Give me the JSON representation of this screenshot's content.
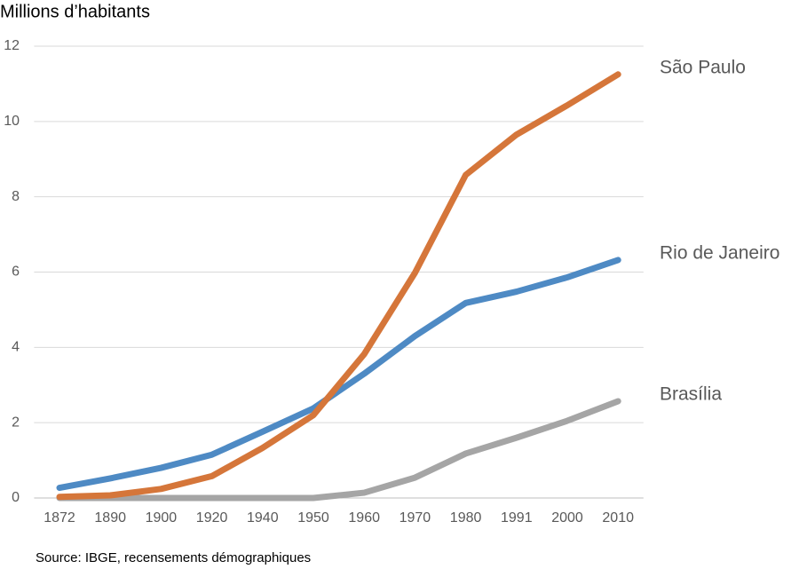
{
  "chart_data": {
    "type": "line",
    "title": "Millions d’habitants",
    "source": "Source: IBGE, recensements démographiques",
    "categories": [
      "1872",
      "1890",
      "1900",
      "1920",
      "1940",
      "1950",
      "1960",
      "1970",
      "1980",
      "1991",
      "2000",
      "2010"
    ],
    "series": [
      {
        "name": "São Paulo",
        "color": "#d5763a",
        "values": [
          0.03,
          0.07,
          0.24,
          0.58,
          1.33,
          2.2,
          3.82,
          5.98,
          8.58,
          9.65,
          10.43,
          11.25
        ]
      },
      {
        "name": "Rio de Janeiro",
        "color": "#4e8ac4",
        "values": [
          0.27,
          0.52,
          0.8,
          1.15,
          1.76,
          2.38,
          3.3,
          4.3,
          5.18,
          5.48,
          5.86,
          6.32
        ]
      },
      {
        "name": "Brasília",
        "color": "#a5a5a5",
        "values": [
          0,
          0,
          0,
          0,
          0,
          0,
          0.14,
          0.54,
          1.18,
          1.6,
          2.05,
          2.57
        ]
      }
    ],
    "ylim": [
      0,
      12
    ],
    "yticks": [
      0,
      2,
      4,
      6,
      8,
      10,
      12
    ],
    "grid": true,
    "legend": "line-end"
  }
}
